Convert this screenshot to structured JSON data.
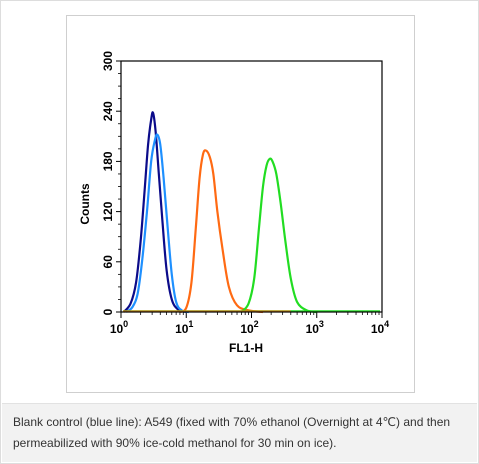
{
  "caption": "Blank control (blue line): A549 (fixed with 70% ethanol (Overnight at 4℃) and then permeabilized with 90% ice-cold methanol for 30 min on ice).",
  "chart_data": {
    "type": "line",
    "xlabel": "FL1-H",
    "ylabel": "Counts",
    "xscale": "log",
    "xlim": [
      1,
      10000
    ],
    "ylim": [
      0,
      300
    ],
    "x_ticks": [
      {
        "base": "10",
        "exp": "0"
      },
      {
        "base": "10",
        "exp": "1"
      },
      {
        "base": "10",
        "exp": "2"
      },
      {
        "base": "10",
        "exp": "3"
      },
      {
        "base": "10",
        "exp": "4"
      }
    ],
    "y_ticks": [
      "0",
      "60",
      "120",
      "180",
      "240",
      "300"
    ],
    "grid": false,
    "series": [
      {
        "color": "#0b0b8a",
        "x": [
          1.1,
          1.4,
          1.7,
          2.0,
          2.3,
          2.6,
          2.9,
          3.1,
          3.4,
          3.8,
          4.3,
          5.0,
          6.0,
          7.5,
          10
        ],
        "y": [
          0,
          10,
          35,
          85,
          145,
          200,
          230,
          238,
          215,
          165,
          110,
          50,
          15,
          3,
          0
        ]
      },
      {
        "color": "#1e90ff",
        "x": [
          1.2,
          1.5,
          1.8,
          2.1,
          2.5,
          2.9,
          3.3,
          3.6,
          4.0,
          4.5,
          5.2,
          6.0,
          7.0,
          8.5,
          11
        ],
        "y": [
          0,
          6,
          22,
          60,
          120,
          180,
          205,
          212,
          200,
          160,
          100,
          45,
          12,
          2,
          0
        ]
      },
      {
        "color": "#ff6a13",
        "x": [
          8,
          10,
          12,
          14,
          16,
          18,
          20,
          23,
          26,
          30,
          36,
          45,
          60,
          90,
          150
        ],
        "y": [
          0,
          5,
          35,
          100,
          160,
          188,
          193,
          185,
          165,
          120,
          75,
          30,
          8,
          2,
          0
        ]
      },
      {
        "color": "#22dd22",
        "x": [
          70,
          90,
          110,
          130,
          150,
          170,
          190,
          210,
          240,
          280,
          330,
          400,
          500,
          700,
          1000
        ],
        "y": [
          0,
          10,
          40,
          100,
          150,
          175,
          183,
          180,
          165,
          130,
          85,
          40,
          12,
          2,
          0
        ]
      }
    ]
  }
}
